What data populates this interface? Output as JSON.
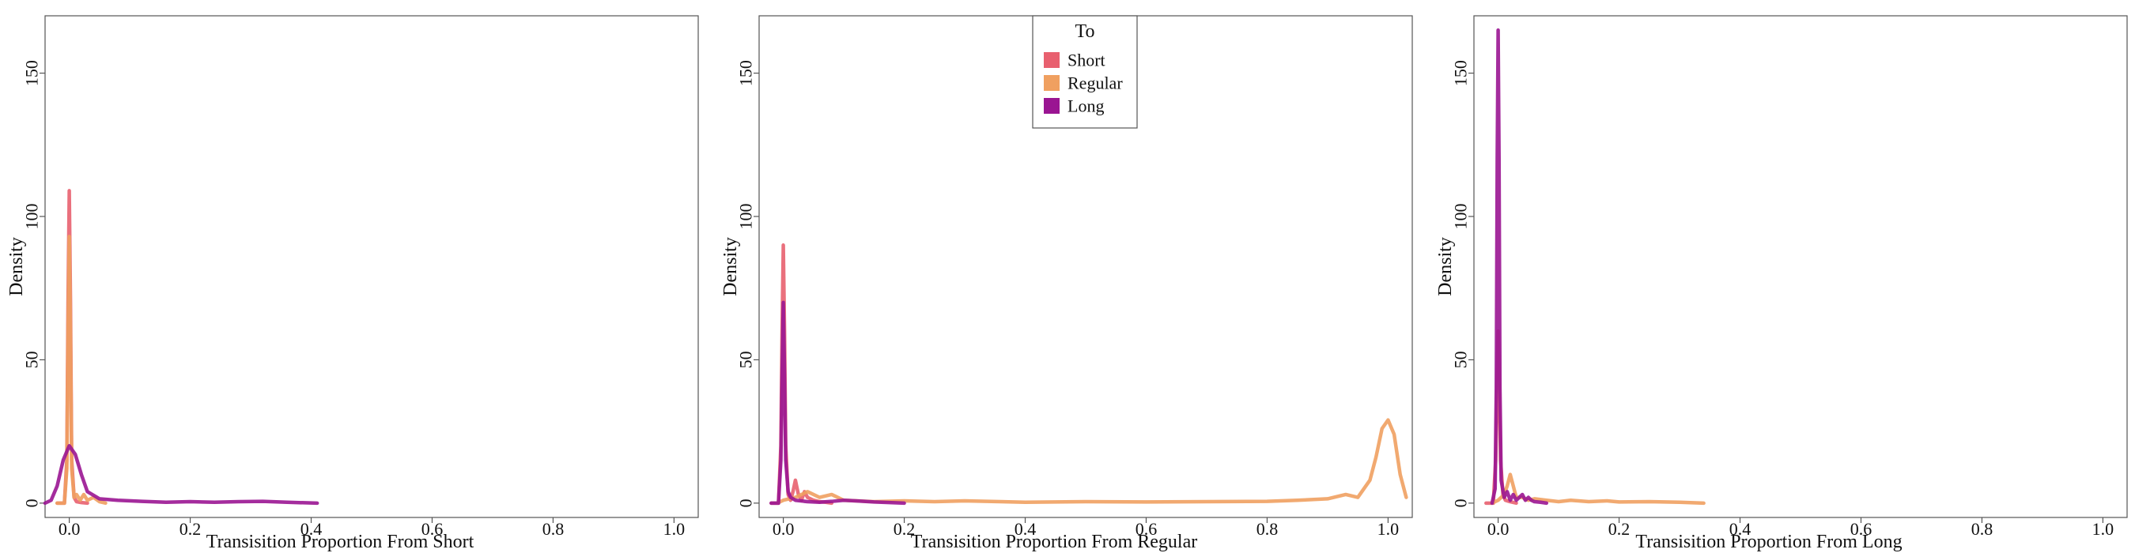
{
  "chart_data": [
    {
      "type": "line",
      "title": "",
      "xlabel": "Transisition Proportion From Short",
      "ylabel": "Density",
      "xlim": [
        -0.04,
        1.04
      ],
      "ylim": [
        -5,
        170
      ],
      "xticks": [
        "0.0",
        "0.2",
        "0.4",
        "0.6",
        "0.8",
        "1.0"
      ],
      "yticks": [
        "0",
        "50",
        "100",
        "150"
      ],
      "grid": false,
      "series": [
        {
          "name": "Short",
          "color": "#e8606f",
          "x": [
            -0.02,
            -0.008,
            -0.004,
            -0.002,
            0.0,
            0.002,
            0.004,
            0.008,
            0.012,
            0.02,
            0.03
          ],
          "y": [
            0,
            0,
            15,
            70,
            109,
            70,
            15,
            2,
            0.5,
            0.2,
            0
          ]
        },
        {
          "name": "Regular",
          "color": "#f0a060",
          "x": [
            -0.02,
            -0.008,
            -0.004,
            -0.002,
            0.0,
            0.002,
            0.004,
            0.008,
            0.012,
            0.018,
            0.024,
            0.03,
            0.04,
            0.05,
            0.06
          ],
          "y": [
            0,
            0,
            12,
            60,
            93,
            60,
            12,
            2,
            3,
            1,
            3,
            1,
            2,
            0.5,
            0
          ]
        },
        {
          "name": "Long",
          "color": "#9a1592",
          "x": [
            -0.04,
            -0.03,
            -0.02,
            -0.01,
            0.0,
            0.01,
            0.02,
            0.03,
            0.05,
            0.08,
            0.12,
            0.16,
            0.2,
            0.24,
            0.28,
            0.32,
            0.36,
            0.41
          ],
          "y": [
            0,
            1,
            6,
            15,
            20,
            17,
            10,
            4,
            1.5,
            1,
            0.6,
            0.3,
            0.5,
            0.3,
            0.5,
            0.6,
            0.3,
            0
          ]
        }
      ]
    },
    {
      "type": "line",
      "title": "",
      "xlabel": "Transisition Proportion From Regular",
      "ylabel": "Density",
      "xlim": [
        -0.04,
        1.04
      ],
      "ylim": [
        -5,
        170
      ],
      "xticks": [
        "0.0",
        "0.2",
        "0.4",
        "0.6",
        "0.8",
        "1.0"
      ],
      "yticks": [
        "0",
        "50",
        "100",
        "150"
      ],
      "grid": false,
      "legend": {
        "title": "To",
        "position": "top-center",
        "items": [
          "Short",
          "Regular",
          "Long"
        ]
      },
      "series": [
        {
          "name": "Short",
          "color": "#e8606f",
          "x": [
            -0.02,
            -0.008,
            -0.004,
            -0.002,
            0.0,
            0.002,
            0.004,
            0.008,
            0.012,
            0.016,
            0.02,
            0.025,
            0.03,
            0.035,
            0.04,
            0.05,
            0.06,
            0.07,
            0.08
          ],
          "y": [
            0,
            0,
            20,
            60,
            90,
            60,
            20,
            3,
            1,
            4,
            8,
            3,
            1,
            4,
            2,
            1,
            0.5,
            0.3,
            0
          ]
        },
        {
          "name": "Regular",
          "color": "#f0a060",
          "x": [
            -0.01,
            0.0,
            0.02,
            0.04,
            0.06,
            0.08,
            0.1,
            0.15,
            0.2,
            0.25,
            0.3,
            0.4,
            0.5,
            0.6,
            0.7,
            0.8,
            0.85,
            0.9,
            0.93,
            0.95,
            0.97,
            0.98,
            0.99,
            1.0,
            1.01,
            1.02,
            1.03
          ],
          "y": [
            0,
            1,
            2,
            4,
            2,
            3,
            1,
            0.5,
            0.8,
            0.5,
            0.8,
            0.3,
            0.5,
            0.4,
            0.5,
            0.6,
            1,
            1.5,
            3,
            2,
            8,
            16,
            26,
            29,
            24,
            10,
            2
          ]
        },
        {
          "name": "Long",
          "color": "#9a1592",
          "x": [
            -0.02,
            -0.008,
            -0.004,
            -0.002,
            0.0,
            0.002,
            0.004,
            0.008,
            0.012,
            0.02,
            0.04,
            0.06,
            0.08,
            0.1,
            0.12,
            0.15,
            0.2
          ],
          "y": [
            0,
            0,
            15,
            45,
            70,
            45,
            15,
            4,
            2,
            1,
            0.5,
            0.3,
            0.6,
            1,
            0.8,
            0.4,
            0
          ]
        }
      ]
    },
    {
      "type": "line",
      "title": "",
      "xlabel": "Transisition Proportion From Long",
      "ylabel": "Density",
      "xlim": [
        -0.04,
        1.04
      ],
      "ylim": [
        -5,
        170
      ],
      "xticks": [
        "0.0",
        "0.2",
        "0.4",
        "0.6",
        "0.8",
        "1.0"
      ],
      "yticks": [
        "0",
        "50",
        "100",
        "150"
      ],
      "grid": false,
      "series": [
        {
          "name": "Short",
          "color": "#e8606f",
          "x": [
            -0.02,
            -0.008,
            -0.004,
            -0.002,
            0.0,
            0.002,
            0.004,
            0.008,
            0.012,
            0.02,
            0.03
          ],
          "y": [
            0,
            0,
            15,
            40,
            60,
            40,
            15,
            3,
            1,
            0.5,
            0
          ]
        },
        {
          "name": "Regular",
          "color": "#f0a060",
          "x": [
            -0.01,
            0.0,
            0.005,
            0.01,
            0.015,
            0.02,
            0.025,
            0.03,
            0.04,
            0.05,
            0.06,
            0.08,
            0.1,
            0.12,
            0.15,
            0.18,
            0.2,
            0.25,
            0.3,
            0.34
          ],
          "y": [
            0,
            1,
            2,
            3,
            6,
            10,
            6,
            2,
            2,
            1,
            1.5,
            1,
            0.5,
            1,
            0.5,
            0.8,
            0.4,
            0.5,
            0.3,
            0
          ]
        },
        {
          "name": "Long",
          "color": "#9a1592",
          "x": [
            -0.01,
            -0.005,
            -0.003,
            -0.0015,
            0.0,
            0.0015,
            0.003,
            0.005,
            0.01,
            0.015,
            0.02,
            0.025,
            0.03,
            0.035,
            0.04,
            0.045,
            0.05,
            0.055,
            0.06,
            0.07,
            0.08
          ],
          "y": [
            0,
            5,
            40,
            120,
            165,
            120,
            40,
            8,
            2,
            4,
            1,
            3,
            1,
            2,
            3,
            1,
            2,
            1,
            0.5,
            0.3,
            0
          ]
        }
      ]
    }
  ]
}
